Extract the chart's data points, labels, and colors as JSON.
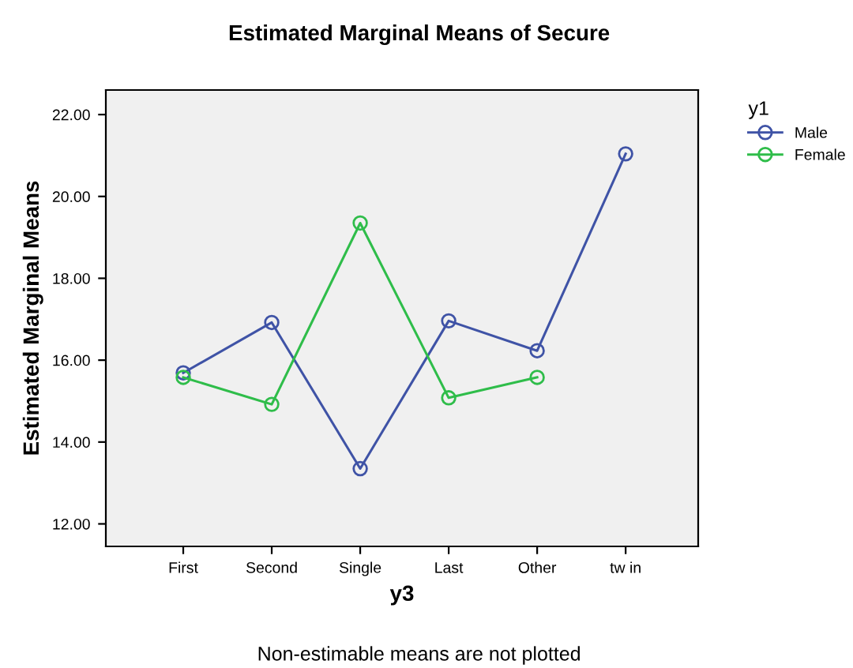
{
  "chart_data": {
    "type": "line",
    "title": "Estimated Marginal Means of Secure",
    "xlabel": "y3",
    "ylabel": "Estimated Marginal Means",
    "legend_title": "y1",
    "categories": [
      "First",
      "Second",
      "Single",
      "Last",
      "Other",
      "tw in"
    ],
    "series": [
      {
        "name": "Male",
        "color": "#3f53a6",
        "values": [
          15.69,
          16.92,
          13.35,
          16.96,
          16.23,
          21.04
        ]
      },
      {
        "name": "Female",
        "color": "#2fbd4a",
        "values": [
          15.58,
          14.92,
          19.35,
          15.08,
          15.58,
          null
        ]
      }
    ],
    "ylim": [
      11.45,
      22.6
    ],
    "yticks": [
      {
        "value": 12,
        "label": "12.00"
      },
      {
        "value": 14,
        "label": "14.00"
      },
      {
        "value": 16,
        "label": "16.00"
      },
      {
        "value": 18,
        "label": "18.00"
      },
      {
        "value": 20,
        "label": "20.00"
      },
      {
        "value": 22,
        "label": "22.00"
      }
    ],
    "grid": false,
    "legend": "top right",
    "marker": "circle",
    "line_style": "solid",
    "annotations": [
      "Non-estimable means are not plotted"
    ]
  }
}
